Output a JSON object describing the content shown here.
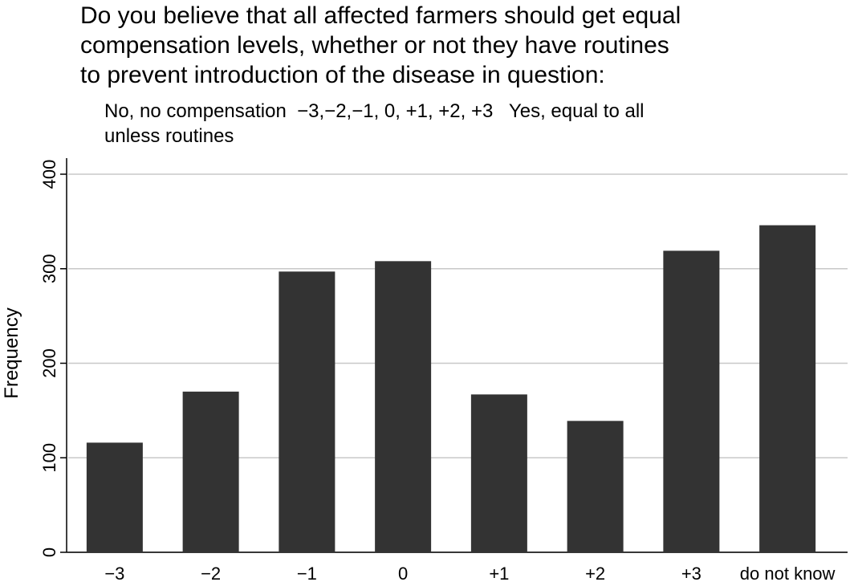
{
  "chart_data": {
    "type": "bar",
    "title": [
      "Do you believe that all affected farmers should get equal",
      "compensation levels, whether or not they have routines",
      "to prevent introduction of the disease in question:"
    ],
    "subtitle": [
      "No, no compensation  −3,−2,−1, 0, +1, +2, +3   Yes, equal to all",
      "unless routines"
    ],
    "y_label": "Frequency",
    "categories": [
      "−3",
      "−2",
      "−1",
      "0",
      "+1",
      "+2",
      "+3",
      "do not know"
    ],
    "values": [
      116,
      170,
      297,
      308,
      167,
      139,
      319,
      346
    ],
    "color": "#333333",
    "ylim": [
      0,
      400
    ],
    "yticks": [
      0,
      100,
      200,
      300,
      400
    ],
    "grid": true
  }
}
